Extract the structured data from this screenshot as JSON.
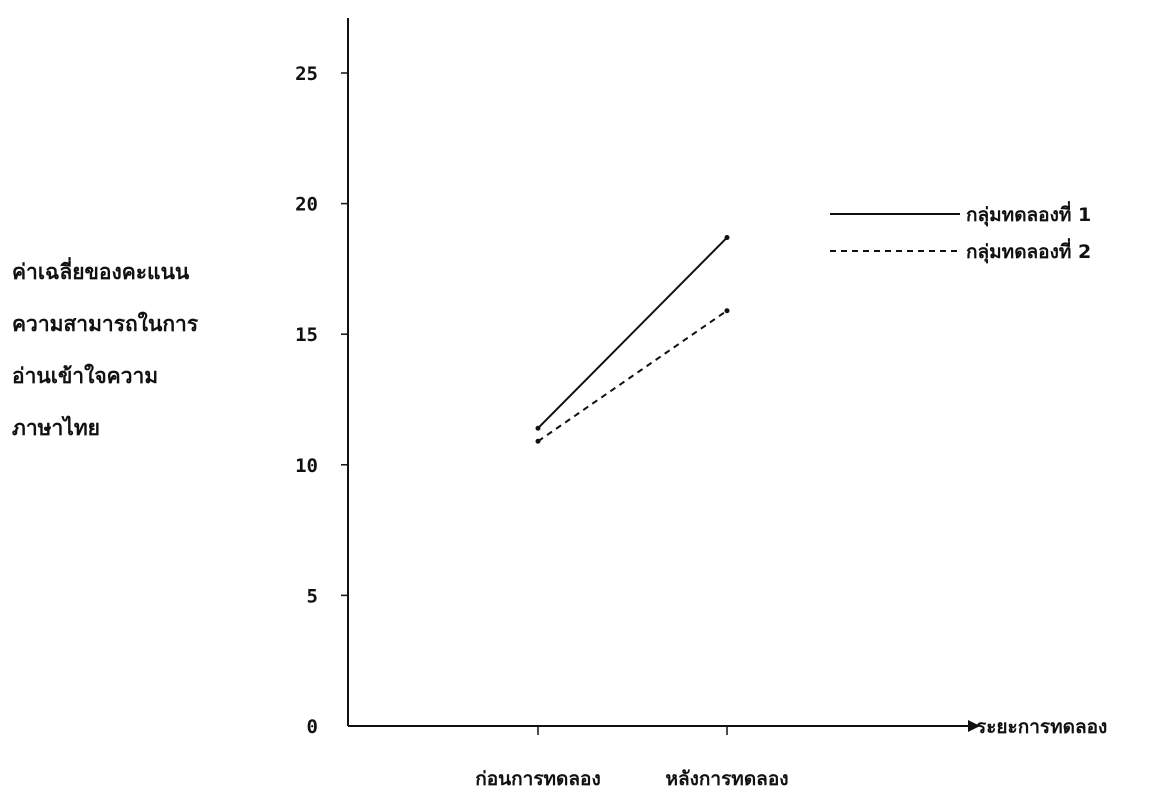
{
  "chart_data": {
    "type": "line",
    "title": "",
    "ylabel_lines": [
      "ค่าเฉลี่ยของคะแนน",
      "ความสามารถในการ",
      "อ่านเข้าใจความ",
      "ภาษาไทย"
    ],
    "xlabel": "ระยะการทดลอง",
    "categories": [
      "ก่อนการทดลอง",
      "หลังการทดลอง"
    ],
    "yticks": [
      0,
      5,
      10,
      15,
      20,
      25
    ],
    "ylim": [
      0,
      27.5
    ],
    "grid": false,
    "legend_position": "right",
    "series": [
      {
        "name": "กลุ่มทดลองที่ 1",
        "style": "solid",
        "values": [
          11.4,
          18.7
        ]
      },
      {
        "name": "กลุ่มทดลองที่ 2",
        "style": "dashed",
        "values": [
          10.9,
          15.9
        ]
      }
    ],
    "line_color": "#111111"
  }
}
